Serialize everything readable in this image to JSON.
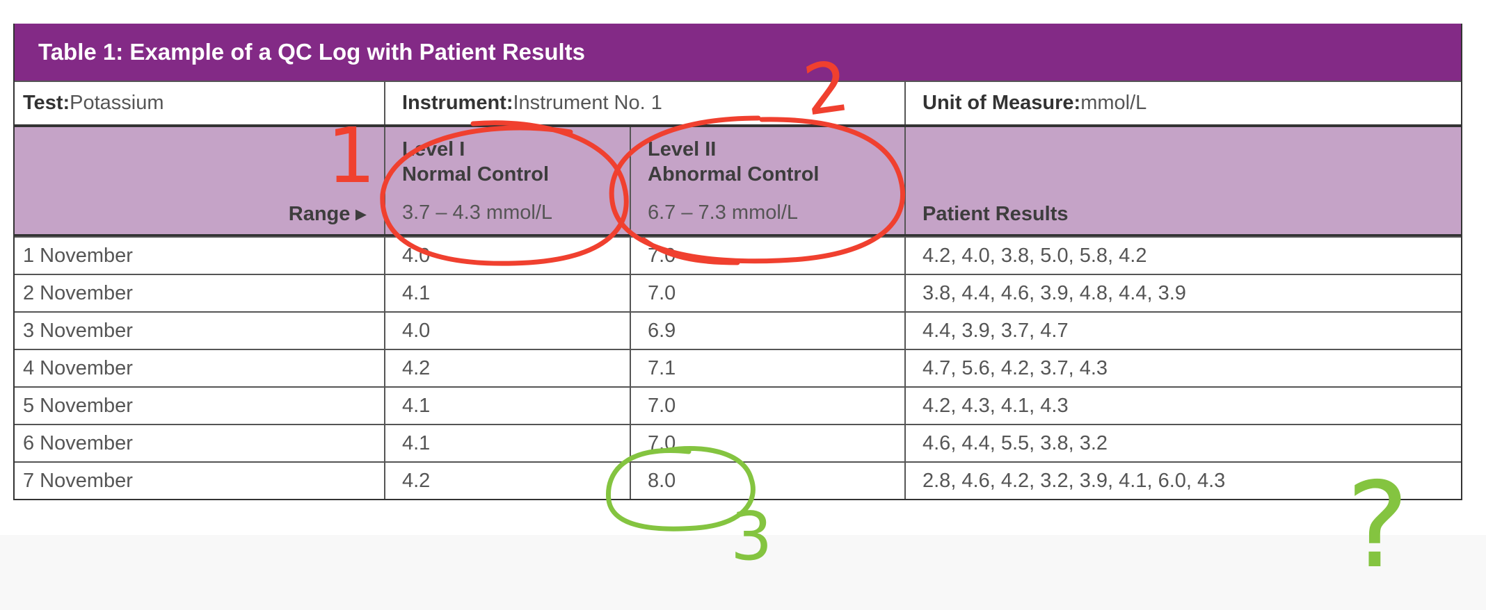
{
  "table": {
    "title": "Table 1: Example of a QC Log with Patient Results",
    "test_label": "Test:",
    "test_value": " Potassium",
    "instrument_label": "Instrument:",
    "instrument_value": " Instrument No. 1",
    "unit_label": "Unit of Measure:",
    "unit_value": " mmol/L",
    "range_label": "Range ▸",
    "level1": {
      "line1": "Level I",
      "line2": "Normal Control",
      "range": "3.7 – 4.3 mmol/L"
    },
    "level2": {
      "line1": "Level II",
      "line2": "Abnormal Control",
      "range": "6.7 – 7.3 mmol/L"
    },
    "patient_header": "Patient Results",
    "rows": [
      {
        "date": "1 November",
        "l1": "4.0",
        "l2": "7.0",
        "patients": "4.2, 4.0, 3.8, 5.0, 5.8, 4.2"
      },
      {
        "date": "2 November",
        "l1": "4.1",
        "l2": "7.0",
        "patients": "3.8, 4.4, 4.6, 3.9, 4.8, 4.4, 3.9"
      },
      {
        "date": "3 November",
        "l1": "4.0",
        "l2": "6.9",
        "patients": "4.4, 3.9, 3.7, 4.7"
      },
      {
        "date": "4 November",
        "l1": "4.2",
        "l2": "7.1",
        "patients": "4.7, 5.6, 4.2, 3.7, 4.3"
      },
      {
        "date": "5 November",
        "l1": "4.1",
        "l2": "7.0",
        "patients": "4.2, 4.3, 4.1, 4.3"
      },
      {
        "date": "6 November",
        "l1": "4.1",
        "l2": "7.0",
        "patients": "4.6, 4.4, 5.5, 3.8, 3.2"
      },
      {
        "date": "7 November",
        "l1": "4.2",
        "l2": "8.0",
        "patients": "2.8, 4.6, 4.2, 3.2, 3.9, 4.1, 6.0, 4.3"
      }
    ]
  },
  "annotations": {
    "mark1": "1",
    "mark2": "2",
    "mark3": "3",
    "mark4": "?",
    "red": "#f0402f",
    "green": "#84c440"
  },
  "colors": {
    "title_bg": "#832a86",
    "header_bg": "#c5a3c7"
  }
}
